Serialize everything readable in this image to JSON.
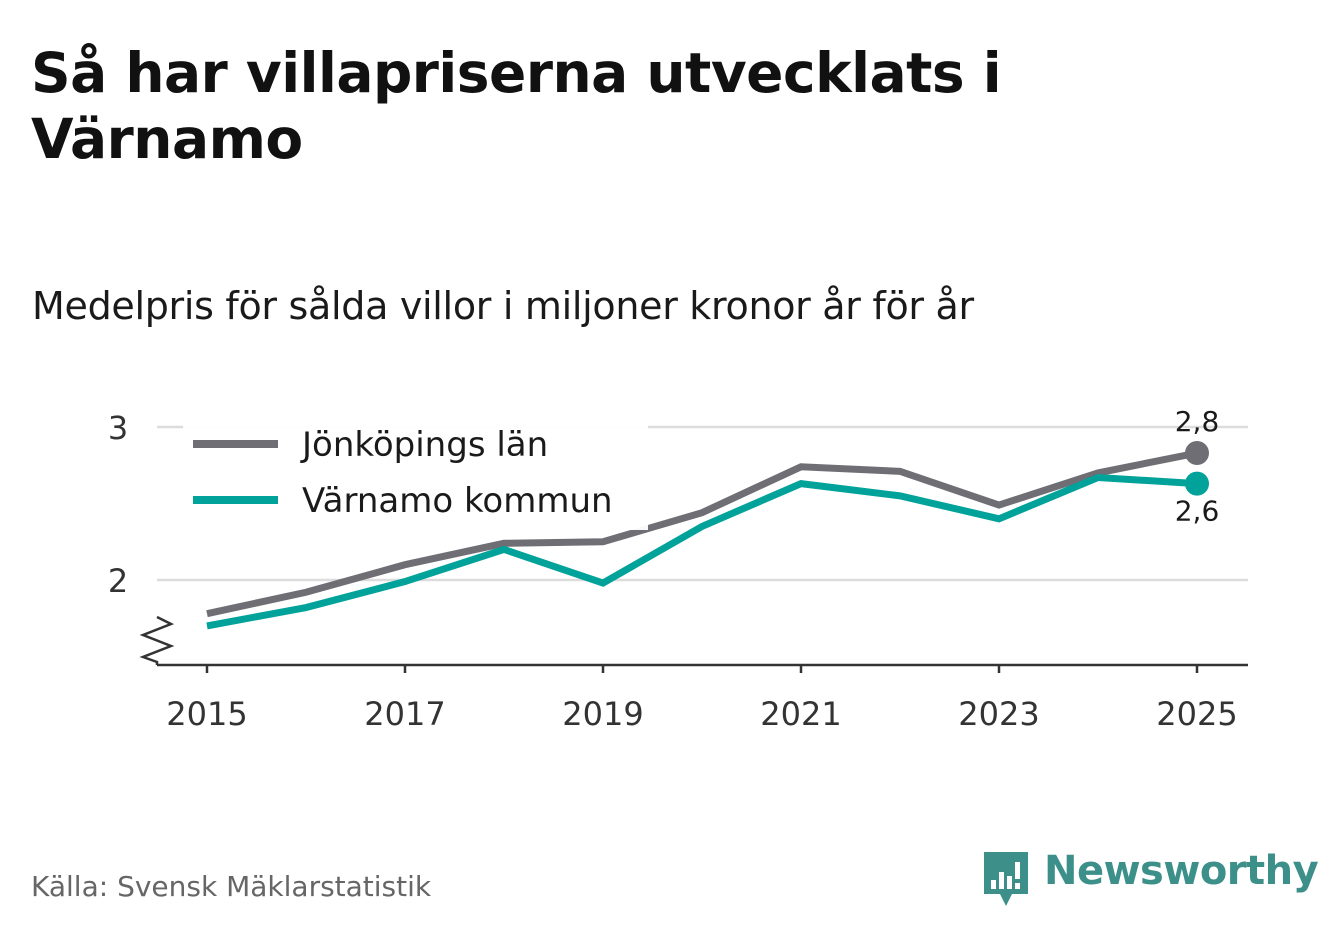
{
  "title": "Så har villapriserna utvecklats i Värnamo",
  "subtitle": "Medelpris för sålda villor i miljoner kronor år för år",
  "source": "Källa: Svensk Mäklarstatistik",
  "brand": {
    "name": "Newsworthy",
    "logo_icon": "bar-chart-speech-bubble-icon",
    "color": "#3d8f8a"
  },
  "chart_data": {
    "type": "line",
    "x": [
      2015,
      2016,
      2017,
      2018,
      2019,
      2020,
      2021,
      2022,
      2023,
      2024,
      2025
    ],
    "x_tick_labels": [
      "2015",
      "2017",
      "2019",
      "2021",
      "2023",
      "2025"
    ],
    "y_tick_labels": [
      "2",
      "3"
    ],
    "y_ticks": [
      2,
      3
    ],
    "ylim": [
      1.45,
      3.18
    ],
    "axis_break": true,
    "grid": true,
    "legend_position": "top-left",
    "series": [
      {
        "name": "Jönköpings län",
        "color": "#6f6e75",
        "values": [
          1.78,
          1.92,
          2.1,
          2.24,
          2.25,
          2.44,
          2.74,
          2.71,
          2.49,
          2.7,
          2.83
        ],
        "end_label": "2,8"
      },
      {
        "name": "Värnamo kommun",
        "color": "#00a29a",
        "values": [
          1.7,
          1.82,
          1.99,
          2.2,
          1.98,
          2.35,
          2.63,
          2.55,
          2.4,
          2.67,
          2.63
        ],
        "end_label": "2,6"
      }
    ]
  }
}
